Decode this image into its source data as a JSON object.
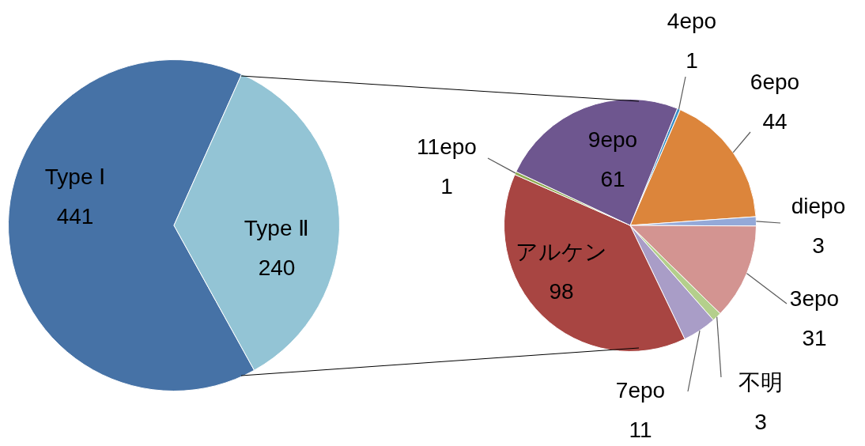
{
  "chart_data": [
    {
      "type": "pie",
      "categories": [
        "Type Ⅰ",
        "Type Ⅱ"
      ],
      "values": [
        441,
        240
      ],
      "colors": [
        "#4672a6",
        "#93c4d5"
      ],
      "data_labels": true
    },
    {
      "type": "pie",
      "categories": [
        "4epo",
        "6epo",
        "diepo",
        "3epo",
        "不明",
        "7epo",
        "アルケン",
        "11epo",
        "9epo"
      ],
      "values": [
        1,
        44,
        3,
        31,
        3,
        11,
        98,
        1,
        61
      ],
      "colors": [
        "#3a8fc6",
        "#dc853b",
        "#94a9d8",
        "#d39491",
        "#b4cf8c",
        "#a99dc7",
        "#a84542",
        "#8eaa50",
        "#6e568f"
      ],
      "data_labels": true
    }
  ]
}
